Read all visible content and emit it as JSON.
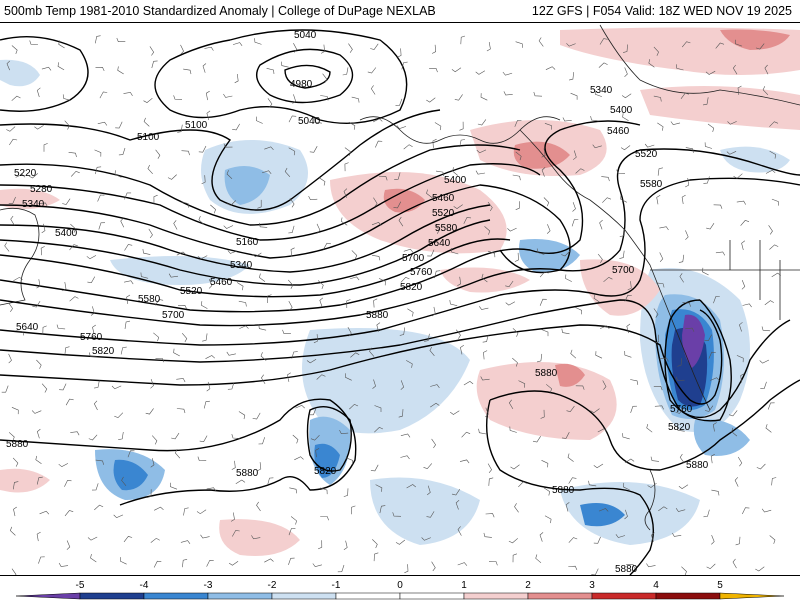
{
  "header": {
    "title_left": "500mb Temp 1981-2010 Standardized Anomaly | College of DuPage NEXLAB",
    "title_right": "12Z GFS | F054 Valid: 18Z WED NOV 19 2025"
  },
  "legend": {
    "ticks": [
      "-5",
      "-4",
      "-3",
      "-2",
      "-1",
      "0",
      "1",
      "2",
      "3",
      "4",
      "5"
    ],
    "colors": [
      "#6a3fa8",
      "#1f3f8f",
      "#3a86d1",
      "#8fbde6",
      "#cde0f1",
      "#ffffff",
      "#ffffff",
      "#f4cfcf",
      "#e38f8f",
      "#c92a2a",
      "#8b0d0d"
    ],
    "end_low_color": "#6a3fa8",
    "end_high_color": "#f0b400"
  },
  "contours": [
    {
      "label": "5040",
      "name": "contour-5040"
    },
    {
      "label": "4980",
      "name": "contour-4980"
    },
    {
      "label": "5100",
      "name": "contour-5100"
    },
    {
      "label": "5160",
      "name": "contour-5160"
    },
    {
      "label": "5220",
      "name": "contour-5220"
    },
    {
      "label": "5280",
      "name": "contour-5280"
    },
    {
      "label": "5340",
      "name": "contour-5340"
    },
    {
      "label": "5400",
      "name": "contour-5400"
    },
    {
      "label": "5460",
      "name": "contour-5460"
    },
    {
      "label": "5520",
      "name": "contour-5520"
    },
    {
      "label": "5580",
      "name": "contour-5580"
    },
    {
      "label": "5640",
      "name": "contour-5640"
    },
    {
      "label": "5700",
      "name": "contour-5700"
    },
    {
      "label": "5760",
      "name": "contour-5760"
    },
    {
      "label": "5820",
      "name": "contour-5820"
    },
    {
      "label": "5880",
      "name": "contour-5880"
    }
  ]
}
